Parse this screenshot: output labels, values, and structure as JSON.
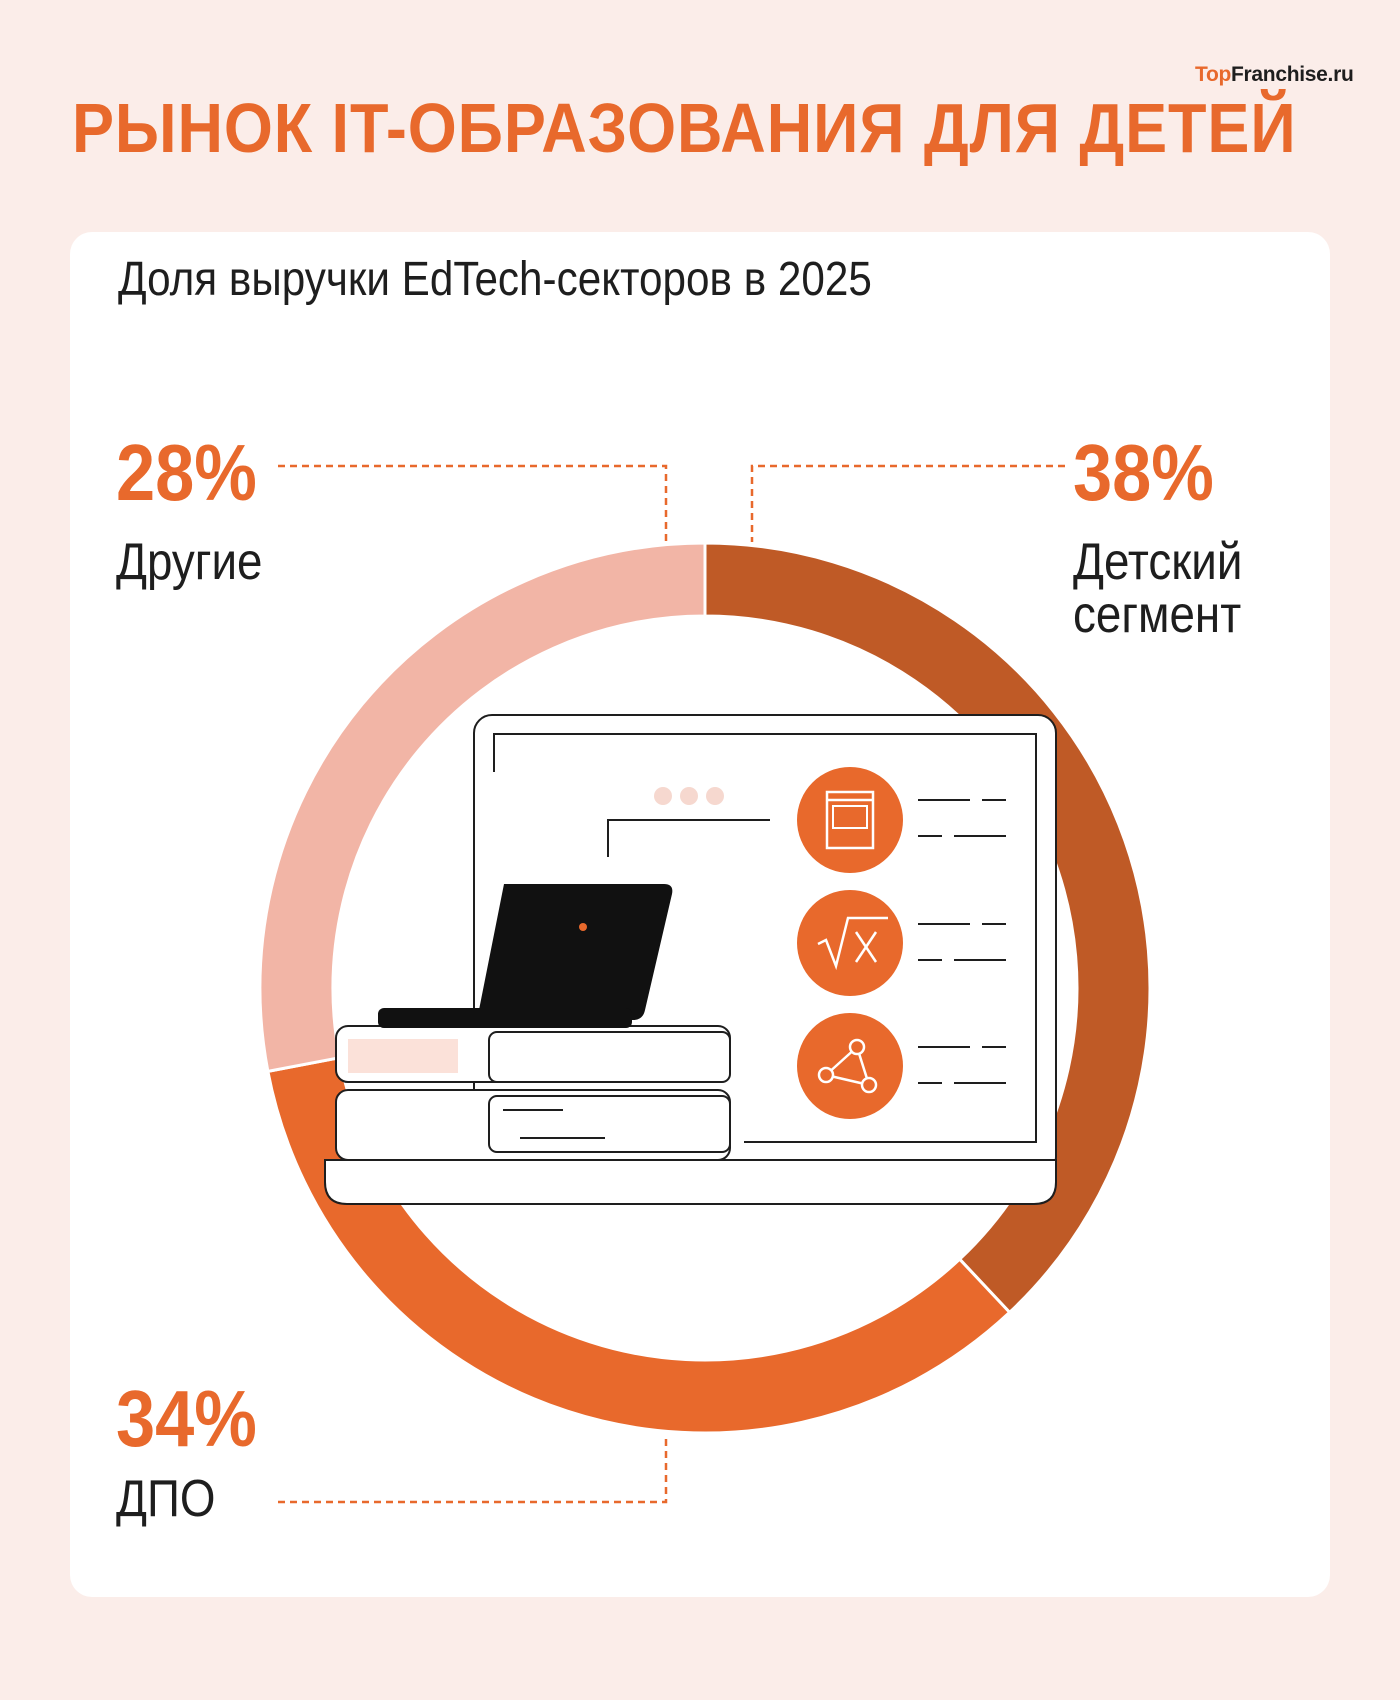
{
  "brand": {
    "part1": "Top",
    "part2": "Franchise.ru"
  },
  "title": "РЫНОК IT-ОБРАЗОВАНИЯ ДЛЯ ДЕТЕЙ",
  "colors": {
    "accent": "#e8692c",
    "kids": "#bf5a26",
    "dpo": "#e8692c",
    "other": "#f2b5a6",
    "background": "#fbede9"
  },
  "chart_data": {
    "type": "pie",
    "title": "Доля выручки EdTech-секторов в 2025",
    "unit": "%",
    "slices": [
      {
        "label": "Детский сегмент",
        "value": 38,
        "display": "38%"
      },
      {
        "label": "ДПО",
        "value": 34,
        "display": "34%"
      },
      {
        "label": "Другие",
        "value": 28,
        "display": "28%"
      }
    ]
  },
  "icons": [
    "book-icon",
    "square-root-icon",
    "graph-nodes-icon",
    "laptop-icon",
    "monitor-icon"
  ]
}
